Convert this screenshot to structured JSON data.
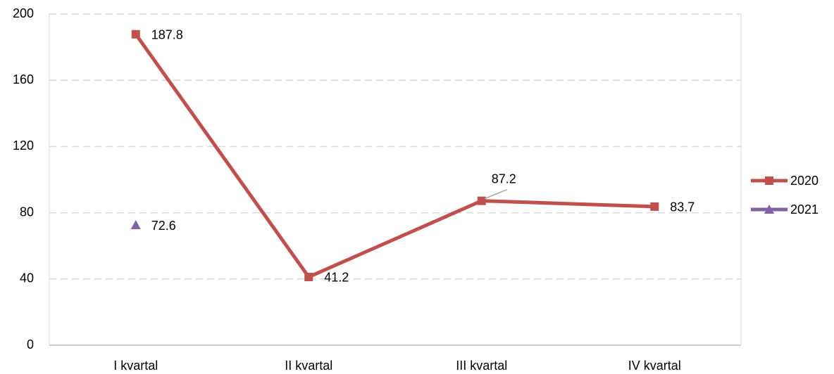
{
  "chart_data": {
    "type": "line",
    "categories": [
      "I kvartal",
      "II kvartal",
      "III kvartal",
      "IV kvartal"
    ],
    "series": [
      {
        "name": "2020",
        "color": "#c0504d",
        "marker": "square",
        "values": [
          187.8,
          41.2,
          87.2,
          83.7
        ]
      },
      {
        "name": "2021",
        "color": "#8064a2",
        "marker": "triangle",
        "values": [
          72.6,
          null,
          null,
          null
        ]
      }
    ],
    "ylim": [
      0,
      200
    ],
    "yticks": [
      0,
      40,
      80,
      120,
      160,
      200
    ],
    "grid": true,
    "legend": "right"
  }
}
